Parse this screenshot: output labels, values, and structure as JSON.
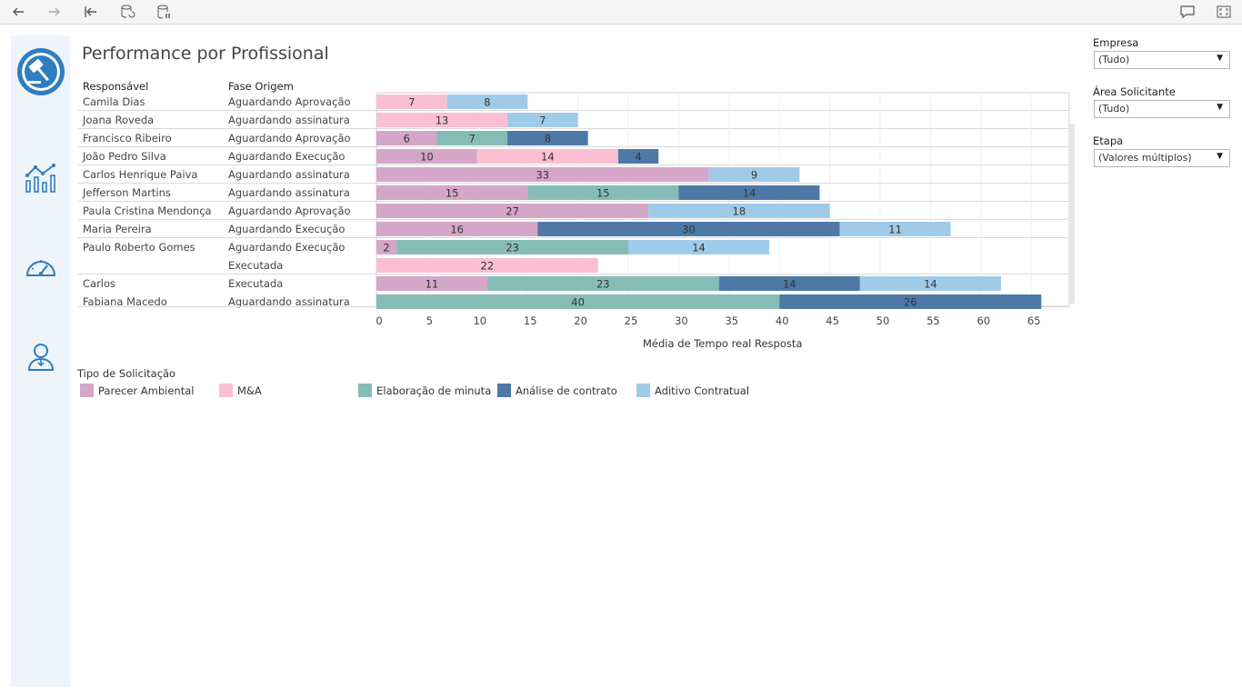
{
  "toolbar": {
    "back_icon": "arrow-left-icon",
    "forward_icon": "arrow-right-icon",
    "revert_icon": "revert-to-start-icon",
    "refresh_icon": "refresh-data-icon",
    "pause_icon": "pause-updates-icon",
    "comment_icon": "comment-icon",
    "fullscreen_icon": "fullscreen-icon"
  },
  "sidebar": {
    "items": [
      {
        "icon": "gavel-logo-icon"
      },
      {
        "icon": "bar-line-chart-icon"
      },
      {
        "icon": "gauge-icon"
      },
      {
        "icon": "person-icon"
      }
    ]
  },
  "title": "Performance por Profissional",
  "table": {
    "col_responsavel": "Responsável",
    "col_fase": "Fase Origem",
    "rows": [
      {
        "responsavel": "Camila Dias",
        "fase": "Aguardando Aprovação"
      },
      {
        "responsavel": "Joana Roveda",
        "fase": "Aguardando assinatura"
      },
      {
        "responsavel": "Francisco Ribeiro",
        "fase": "Aguardando Aprovação"
      },
      {
        "responsavel": "João Pedro Silva",
        "fase": "Aguardando Execução"
      },
      {
        "responsavel": "Carlos Henrique Paiva",
        "fase": "Aguardando assinatura"
      },
      {
        "responsavel": "Jefferson Martins",
        "fase": "Aguardando assinatura"
      },
      {
        "responsavel": "Paula Cristina Mendonça",
        "fase": "Aguardando Aprovação"
      },
      {
        "responsavel": "Maria Pereira",
        "fase": "Aguardando Execução"
      },
      {
        "responsavel": "Paulo Roberto Gomes",
        "fase": "Aguardando Execução"
      },
      {
        "responsavel": "",
        "fase": "Executada"
      },
      {
        "responsavel": "Carlos",
        "fase": "Executada"
      },
      {
        "responsavel": "Fabiana Macedo",
        "fase": "Aguardando assinatura"
      }
    ]
  },
  "chart_data": {
    "type": "bar",
    "orientation": "horizontal",
    "stacked": true,
    "xlabel": "Média de Tempo real Resposta",
    "xlim": [
      0,
      65
    ],
    "xticks": [
      0,
      5,
      10,
      15,
      20,
      25,
      30,
      35,
      40,
      45,
      50,
      55,
      60,
      65
    ],
    "grid": true,
    "legend_title": "Tipo de Solicitação",
    "legend_position": "bottom-left",
    "series": [
      {
        "name": "Parecer Ambiental",
        "color": "#d4a6c8"
      },
      {
        "name": "M&A",
        "color": "#fabfd2"
      },
      {
        "name": "Elaboração de minuta",
        "color": "#86bcb6"
      },
      {
        "name": "Análise de contrato",
        "color": "#4e79a7"
      },
      {
        "name": "Aditivo Contratual",
        "color": "#a0cbe8"
      }
    ],
    "rows": [
      {
        "segments": [
          {
            "series": "M&A",
            "value": 7
          },
          {
            "series": "Aditivo Contratual",
            "value": 8
          }
        ]
      },
      {
        "segments": [
          {
            "series": "M&A",
            "value": 13
          },
          {
            "series": "Aditivo Contratual",
            "value": 7
          }
        ]
      },
      {
        "segments": [
          {
            "series": "Parecer Ambiental",
            "value": 6
          },
          {
            "series": "Elaboração de minuta",
            "value": 7
          },
          {
            "series": "Análise de contrato",
            "value": 8
          }
        ]
      },
      {
        "segments": [
          {
            "series": "Parecer Ambiental",
            "value": 10
          },
          {
            "series": "M&A",
            "value": 14
          },
          {
            "series": "Análise de contrato",
            "value": 4
          }
        ]
      },
      {
        "segments": [
          {
            "series": "Parecer Ambiental",
            "value": 33
          },
          {
            "series": "Aditivo Contratual",
            "value": 9
          }
        ]
      },
      {
        "segments": [
          {
            "series": "Parecer Ambiental",
            "value": 15
          },
          {
            "series": "Elaboração de minuta",
            "value": 15
          },
          {
            "series": "Análise de contrato",
            "value": 14
          }
        ]
      },
      {
        "segments": [
          {
            "series": "Parecer Ambiental",
            "value": 27
          },
          {
            "series": "Aditivo Contratual",
            "value": 18
          }
        ]
      },
      {
        "segments": [
          {
            "series": "Parecer Ambiental",
            "value": 16
          },
          {
            "series": "Análise de contrato",
            "value": 30
          },
          {
            "series": "Aditivo Contratual",
            "value": 11
          }
        ]
      },
      {
        "segments": [
          {
            "series": "Parecer Ambiental",
            "value": 2
          },
          {
            "series": "Elaboração de minuta",
            "value": 23
          },
          {
            "series": "Aditivo Contratual",
            "value": 14
          }
        ]
      },
      {
        "segments": [
          {
            "series": "M&A",
            "value": 22
          }
        ]
      },
      {
        "segments": [
          {
            "series": "Parecer Ambiental",
            "value": 11
          },
          {
            "series": "Elaboração de minuta",
            "value": 23
          },
          {
            "series": "Análise de contrato",
            "value": 14
          },
          {
            "series": "Aditivo Contratual",
            "value": 14
          }
        ]
      },
      {
        "segments": [
          {
            "series": "Elaboração de minuta",
            "value": 40
          },
          {
            "series": "Análise de contrato",
            "value": 26
          }
        ]
      }
    ]
  },
  "filters": {
    "empresa": {
      "label": "Empresa",
      "value": "(Tudo)"
    },
    "area": {
      "label": "Área Solicitante",
      "value": "(Tudo)"
    },
    "etapa": {
      "label": "Etapa",
      "value": "(Valores múltiplos)"
    }
  }
}
